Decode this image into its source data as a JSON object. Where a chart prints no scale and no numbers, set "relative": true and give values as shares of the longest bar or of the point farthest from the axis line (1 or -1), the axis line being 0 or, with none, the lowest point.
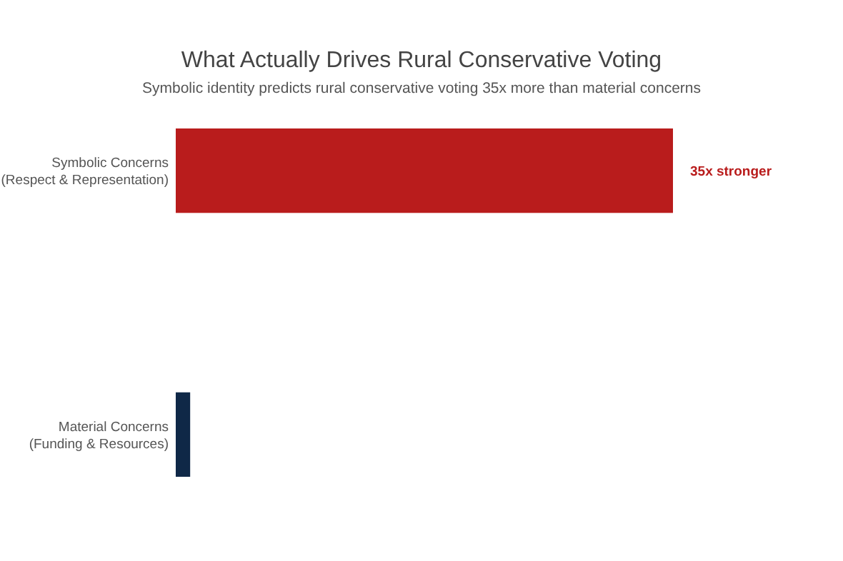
{
  "chart_data": {
    "type": "bar",
    "orientation": "horizontal",
    "relative": true,
    "title": "What Actually Drives Rural Conservative Voting",
    "subtitle": "Symbolic identity predicts rural conservative voting 35x more than material concerns",
    "categories": [
      "Symbolic Concerns\n(Respect & Representation)",
      "Material Concerns\n(Funding & Resources)"
    ],
    "values": [
      1,
      0.029
    ],
    "colors": [
      "#b91c1c",
      "#0f2847"
    ],
    "annotations": [
      {
        "text": "35x stronger",
        "x": 1,
        "y": "Symbolic Concerns\n(Respect & Representation)"
      }
    ]
  }
}
